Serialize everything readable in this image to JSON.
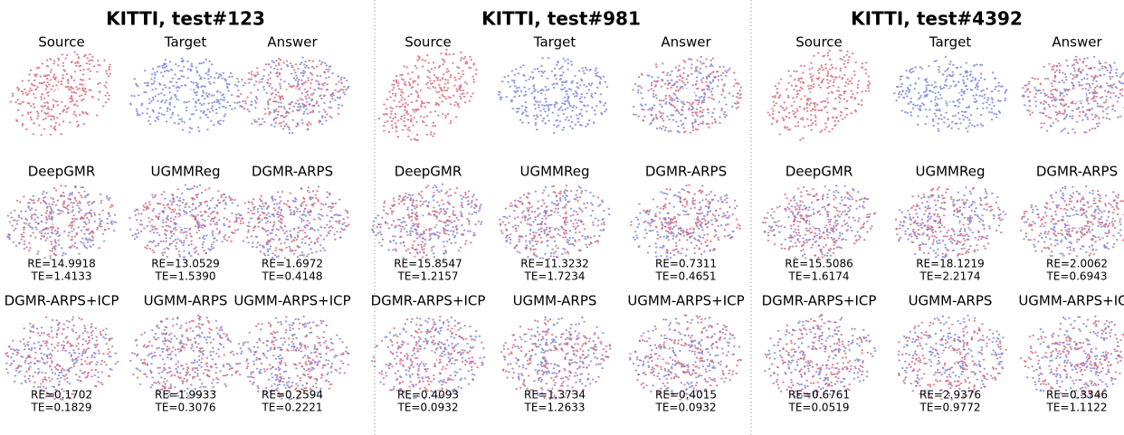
{
  "panels": [
    {
      "title": "KITTI, test#123",
      "cells": [
        {
          "label": "Source"
        },
        {
          "label": "Target"
        },
        {
          "label": "Answer"
        },
        {
          "label": "DeepGMR",
          "re": "RE=14.9918",
          "te": "TE=1.4133"
        },
        {
          "label": "UGMMReg",
          "re": "RE=13.0529",
          "te": "TE=1.5390"
        },
        {
          "label": "DGMR-ARPS",
          "re": "RE=1.6972",
          "te": "TE=0.4148"
        },
        {
          "label": "DGMR-ARPS+ICP",
          "re": "RE=0.1702",
          "te": "TE=0.1829"
        },
        {
          "label": "UGMM-ARPS",
          "re": "RE=1.9933",
          "te": "TE=0.3076"
        },
        {
          "label": "UGMM-ARPS+ICP",
          "re": "RE=0.2594",
          "te": "TE=0.2221"
        }
      ]
    },
    {
      "title": "KITTI, test#981",
      "cells": [
        {
          "label": "Source"
        },
        {
          "label": "Target"
        },
        {
          "label": "Answer"
        },
        {
          "label": "DeepGMR",
          "re": "RE=15.8547",
          "te": "TE=1.2157"
        },
        {
          "label": "UGMMReg",
          "re": "RE=11.3232",
          "te": "TE=1.7234"
        },
        {
          "label": "DGMR-ARPS",
          "re": "RE=0.7311",
          "te": "TE=0.4651"
        },
        {
          "label": "DGMR-ARPS+ICP",
          "re": "RE=0.4093",
          "te": "TE=0.0932"
        },
        {
          "label": "UGMM-ARPS",
          "re": "RE=1.3734",
          "te": "TE=1.2633"
        },
        {
          "label": "UGMM-ARPS+ICP",
          "re": "RE=0.4015",
          "te": "TE=0.0932"
        }
      ]
    },
    {
      "title": "KITTI, test#4392",
      "cells": [
        {
          "label": "Source"
        },
        {
          "label": "Target"
        },
        {
          "label": "Answer"
        },
        {
          "label": "DeepGMR",
          "re": "RE=15.5086",
          "te": "TE=1.6174"
        },
        {
          "label": "UGMMReg",
          "re": "RE=18.1219",
          "te": "TE=2.2174"
        },
        {
          "label": "DGMR-ARPS",
          "re": "RE=2.0062",
          "te": "TE=0.6943"
        },
        {
          "label": "DGMR-ARPS+ICP",
          "re": "RE=0.6761",
          "te": "TE=0.0519"
        },
        {
          "label": "UGMM-ARPS",
          "re": "RE=2.9376",
          "te": "TE=0.9772"
        },
        {
          "label": "UGMM-ARPS+ICP",
          "re": "RE=0.3346",
          "te": "TE=1.1122"
        }
      ]
    }
  ]
}
